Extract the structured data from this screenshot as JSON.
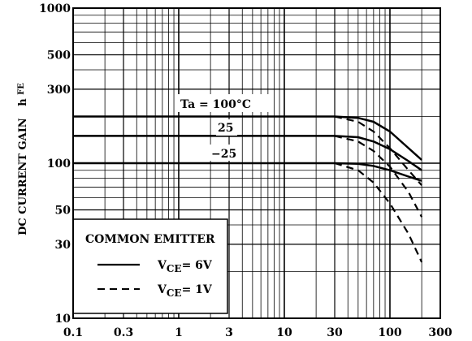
{
  "chart_data": {
    "type": "line",
    "ylabel": "DC CURRENT GAIN",
    "ylabel_symbol": "h",
    "ylabel_subscript": "FE",
    "x_scale": "log",
    "y_scale": "log",
    "xlim": [
      0.1,
      300
    ],
    "ylim": [
      10,
      1000
    ],
    "grid": true,
    "x_ticks": [
      "0.1",
      "0.3",
      "1",
      "3",
      "10",
      "30",
      "100",
      "300"
    ],
    "y_ticks": [
      "1000",
      "500",
      "300",
      "100",
      "50",
      "30",
      "10"
    ],
    "annotations": {
      "ta_100": "Ta = 100°C",
      "ta_25": "25",
      "ta_m25": "−25"
    },
    "legend": {
      "title": "COMMON EMITTER",
      "position": "bottom-left",
      "solid": {
        "symbol": "V",
        "sub": "CE",
        "value": "= 6V"
      },
      "dashed": {
        "symbol": "V",
        "sub": "CE",
        "value": "= 1V"
      }
    },
    "series": [
      {
        "ta": "100°C",
        "vce": "6V",
        "style": "solid",
        "x": [
          0.1,
          30,
          50,
          70,
          100,
          150,
          200
        ],
        "y": [
          200,
          200,
          196,
          185,
          160,
          125,
          105
        ]
      },
      {
        "ta": "100°C",
        "vce": "1V",
        "style": "dashed",
        "x": [
          30,
          50,
          70,
          100,
          150,
          200
        ],
        "y": [
          200,
          185,
          160,
          125,
          90,
          72
        ]
      },
      {
        "ta": "25°C",
        "vce": "6V",
        "style": "solid",
        "x": [
          0.1,
          30,
          50,
          70,
          100,
          150,
          200
        ],
        "y": [
          150,
          150,
          147,
          138,
          123,
          103,
          90
        ]
      },
      {
        "ta": "25°C",
        "vce": "1V",
        "style": "dashed",
        "x": [
          30,
          50,
          70,
          100,
          150,
          200
        ],
        "y": [
          150,
          138,
          120,
          95,
          65,
          45
        ]
      },
      {
        "ta": "-25°C",
        "vce": "6V",
        "style": "solid",
        "x": [
          0.1,
          30,
          50,
          70,
          100,
          150,
          200
        ],
        "y": [
          100,
          100,
          99,
          96,
          90,
          82,
          77
        ]
      },
      {
        "ta": "-25°C",
        "vce": "1V",
        "style": "dashed",
        "x": [
          30,
          50,
          70,
          100,
          150,
          200
        ],
        "y": [
          100,
          90,
          75,
          55,
          35,
          23
        ]
      }
    ]
  }
}
